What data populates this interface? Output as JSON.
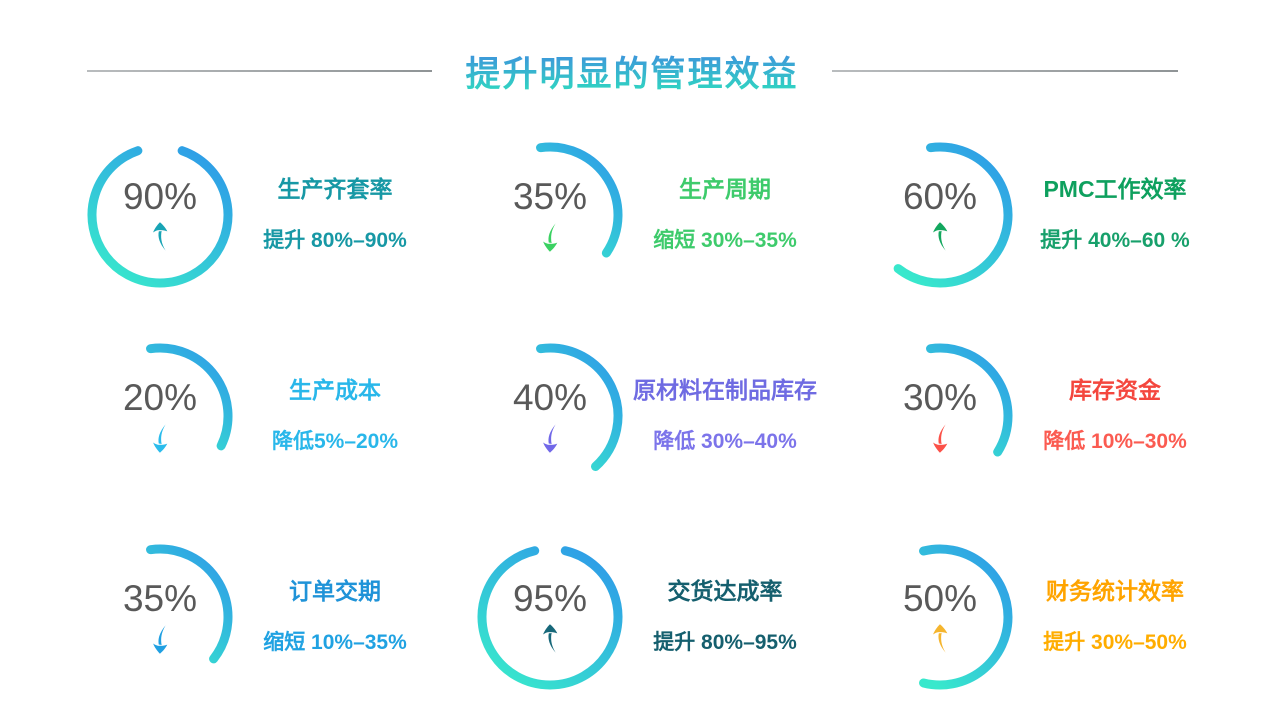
{
  "header": {
    "title": "提升明显的管理效益",
    "title_gradient_top": "#3f8ede",
    "title_gradient_bottom": "#2fd9c0",
    "divider_color": "#9a9a9a"
  },
  "gauge_style": {
    "stroke_color_start": "#2e9be8",
    "stroke_color_end": "#38e8cc",
    "number_color": "#595959"
  },
  "chart_data": {
    "type": "gauge",
    "unit": "%",
    "layout": "3x3-grid",
    "items": [
      {
        "label": "生产齐套率",
        "value": 90,
        "percent_text": "90%",
        "direction": "up",
        "range_text": "提升 80%–90%",
        "title_color": "#1798a5",
        "subtitle_color": "#1798a5",
        "arrow_color": "#18a4b5",
        "arc_start_deg": 19,
        "arc_sweep_deg": 322
      },
      {
        "label": "生产周期",
        "value": 35,
        "percent_text": "35%",
        "direction": "down",
        "range_text": "缩短 30%–35%",
        "title_color": "#3ecb6c",
        "subtitle_color": "#3ecb6c",
        "arrow_color": "#3bd162",
        "arc_start_deg": -8,
        "arc_sweep_deg": 132
      },
      {
        "label": "PMC工作效率",
        "value": 60,
        "percent_text": "60%",
        "direction": "up",
        "range_text": "提升 40%–60 %",
        "title_color": "#0ea05e",
        "subtitle_color": "#17a06b",
        "arrow_color": "#13a75e",
        "arc_start_deg": -8,
        "arc_sweep_deg": 226
      },
      {
        "label": "生产成本",
        "value": 20,
        "percent_text": "20%",
        "direction": "down",
        "range_text": "降低5%–20%",
        "title_color": "#29b7ea",
        "subtitle_color": "#29b7ea",
        "arrow_color": "#2bbcec",
        "arc_start_deg": -8,
        "arc_sweep_deg": 124
      },
      {
        "label": "原材料在制品库存",
        "value": 40,
        "percent_text": "40%",
        "direction": "down",
        "range_text": "降低 30%–40%",
        "title_color": "#6f6be2",
        "subtitle_color": "#7c74ea",
        "arrow_color": "#7168e8",
        "arc_start_deg": -8,
        "arc_sweep_deg": 146
      },
      {
        "label": "库存资金",
        "value": 30,
        "percent_text": "30%",
        "direction": "down",
        "range_text": "降低 10%–30%",
        "title_color": "#f4473e",
        "subtitle_color": "#fb5b51",
        "arrow_color": "#fb5148",
        "arc_start_deg": -8,
        "arc_sweep_deg": 130
      },
      {
        "label": "订单交期",
        "value": 35,
        "percent_text": "35%",
        "direction": "down",
        "range_text": "缩短 10%–35%",
        "title_color": "#1f93d8",
        "subtitle_color": "#20a2e2",
        "arrow_color": "#20a0e2",
        "arc_start_deg": -8,
        "arc_sweep_deg": 136
      },
      {
        "label": "交货达成率",
        "value": 95,
        "percent_text": "95%",
        "direction": "up",
        "range_text": "提升 80%–95%",
        "title_color": "#155f6e",
        "subtitle_color": "#155f6e",
        "arrow_color": "#17687a",
        "arc_start_deg": 13,
        "arc_sweep_deg": 334
      },
      {
        "label": "财务统计效率",
        "value": 50,
        "percent_text": "50%",
        "direction": "up",
        "range_text": "提升 30%–50%",
        "title_color": "#ffa400",
        "subtitle_color": "#ffad00",
        "arrow_color": "#f5b52e",
        "arc_start_deg": -14,
        "arc_sweep_deg": 208
      }
    ]
  }
}
